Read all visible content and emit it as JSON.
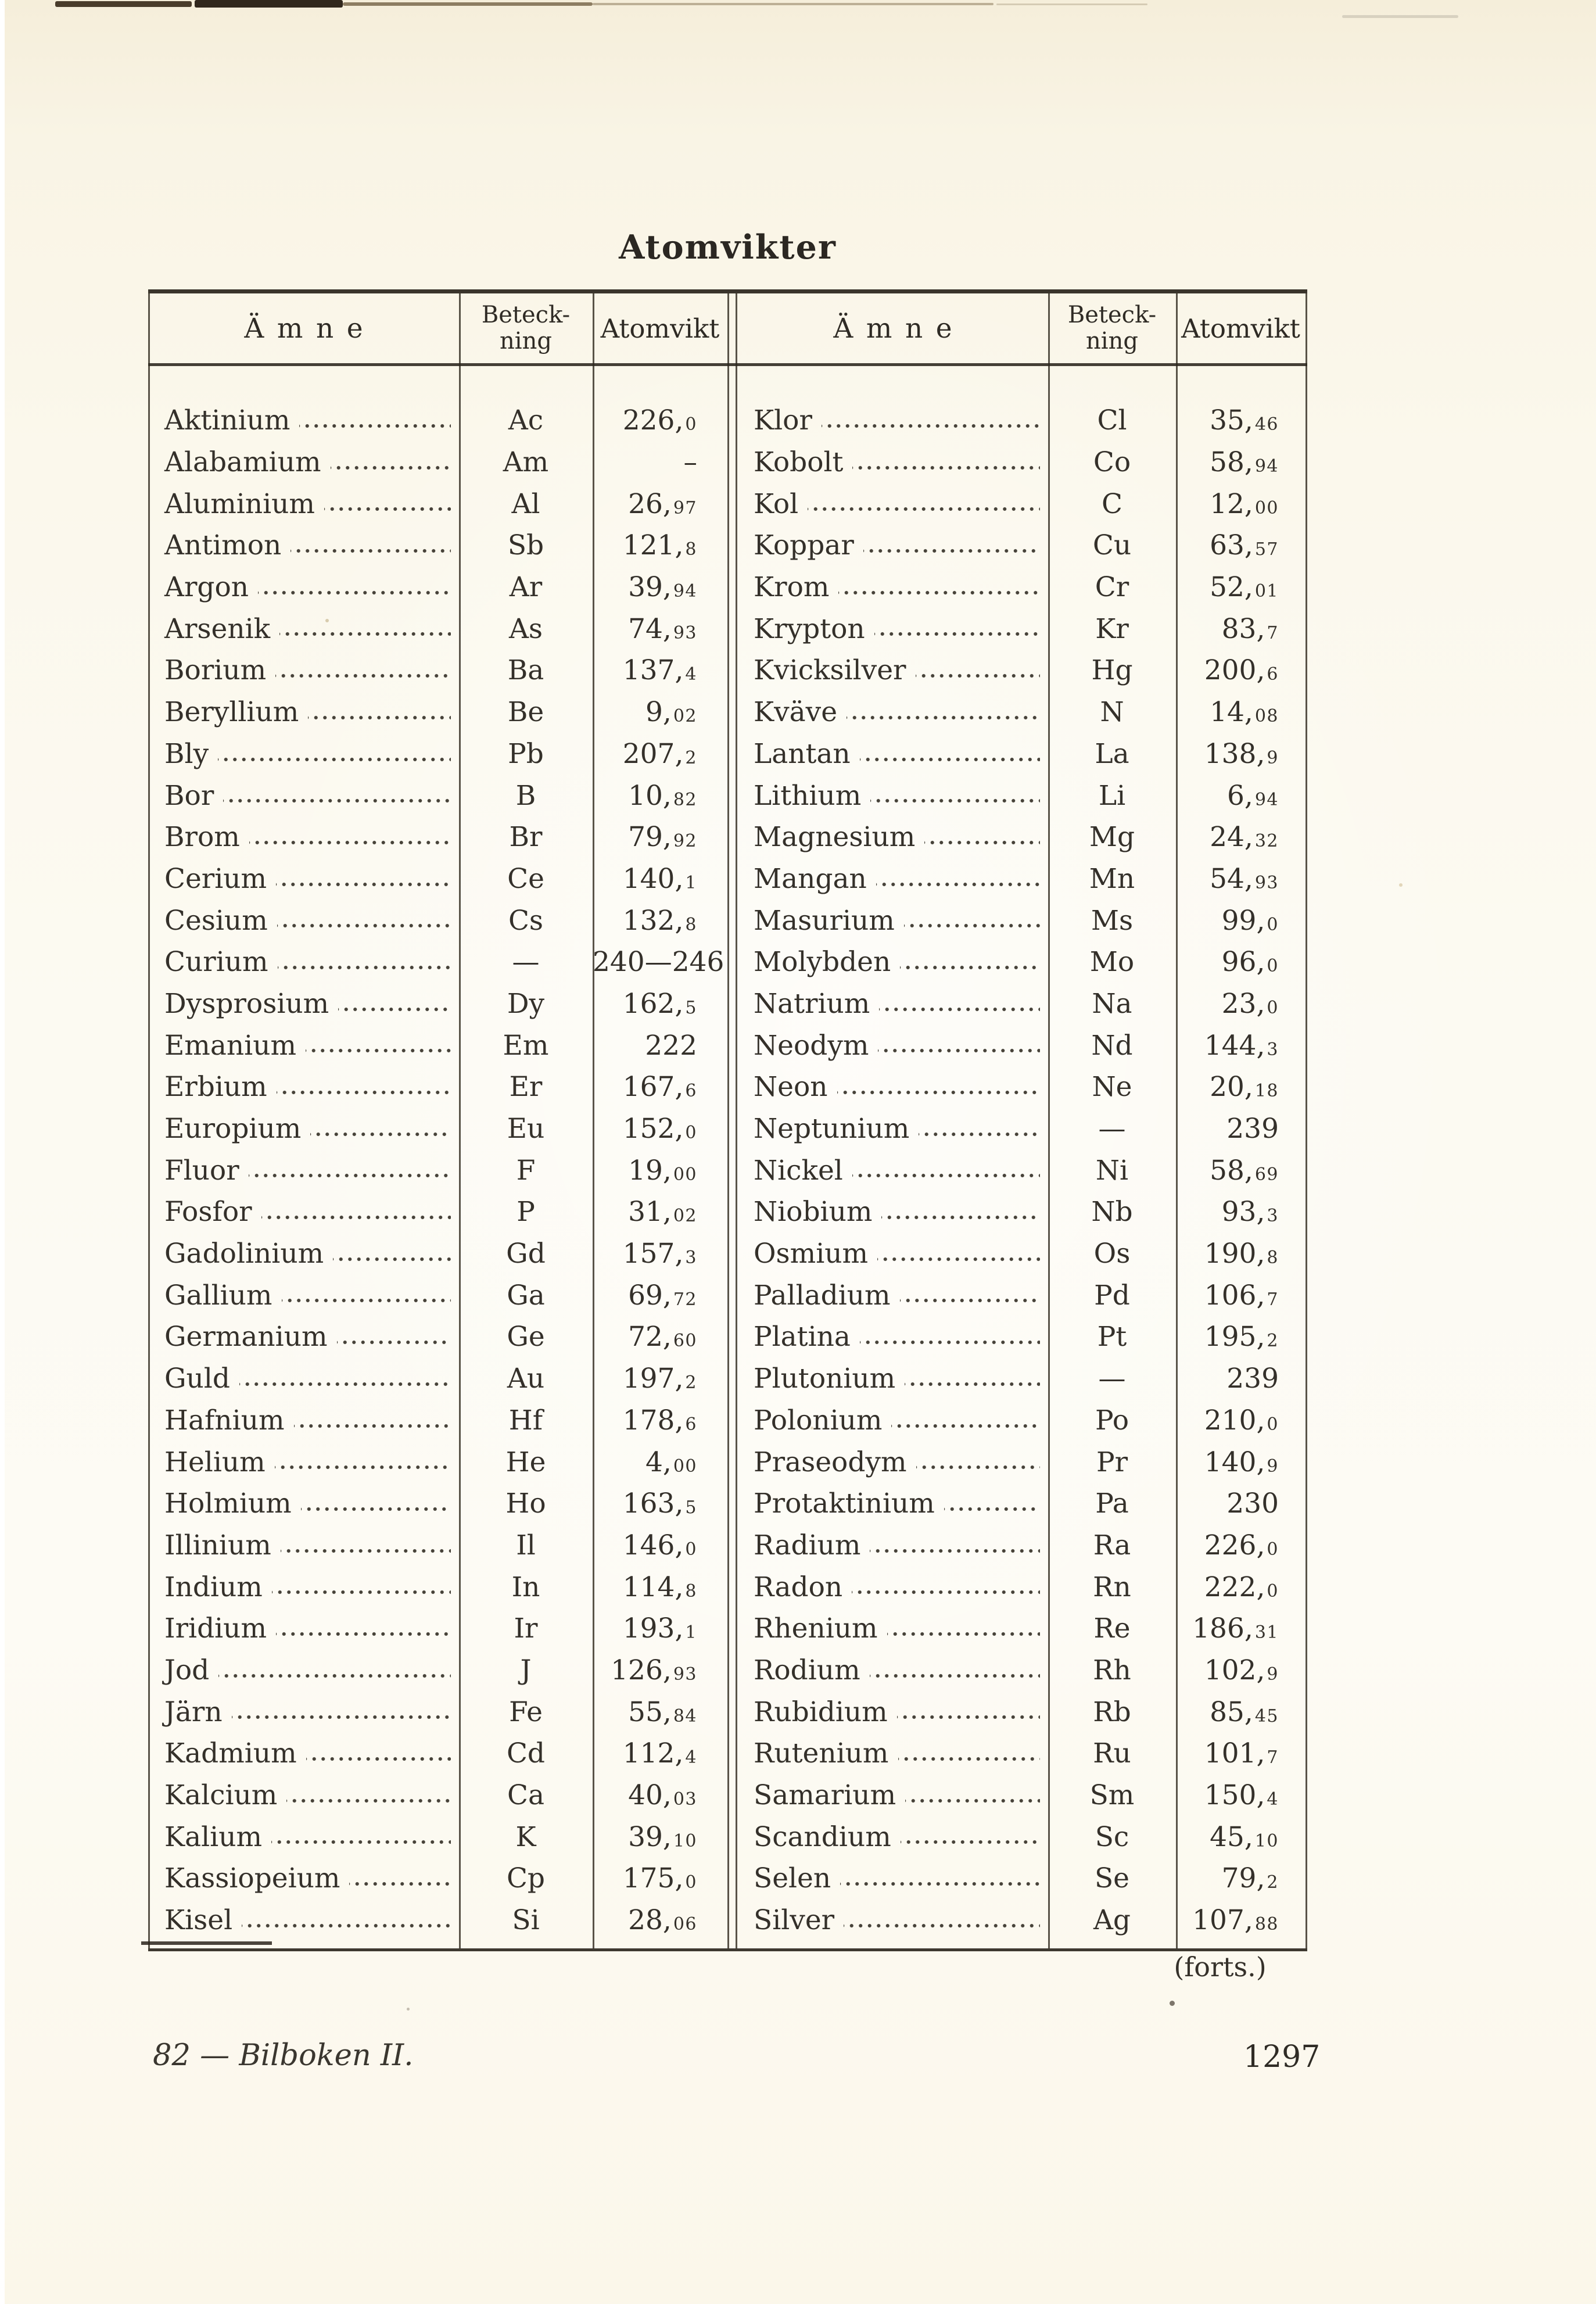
{
  "page": {
    "title": "Atomvikter",
    "continuation": "(forts.)",
    "footer_left": "82 — Bilboken II.",
    "page_number": "1297",
    "colors": {
      "paper_cream": "#f8f3e3",
      "paper_light": "#fcfaf2",
      "ink": "#33302a",
      "rule": "#3a352b"
    }
  },
  "table": {
    "headers": {
      "substance": "Ämne",
      "symbol_line1": "Beteck-",
      "symbol_line2": "ning",
      "weight": "Atomvikt"
    },
    "left_rows": [
      {
        "name": "Aktinium",
        "symbol": "Ac",
        "weight": "226,0"
      },
      {
        "name": "Alabamium",
        "symbol": "Am",
        "weight": "–"
      },
      {
        "name": "Aluminium",
        "symbol": "Al",
        "weight": "26,97"
      },
      {
        "name": "Antimon",
        "symbol": "Sb",
        "weight": "121,8"
      },
      {
        "name": "Argon",
        "symbol": "Ar",
        "weight": "39,94"
      },
      {
        "name": "Arsenik",
        "symbol": "As",
        "weight": "74,93"
      },
      {
        "name": "Borium",
        "symbol": "Ba",
        "weight": "137,4"
      },
      {
        "name": "Beryllium",
        "symbol": "Be",
        "weight": "9,02"
      },
      {
        "name": "Bly",
        "symbol": "Pb",
        "weight": "207,2"
      },
      {
        "name": "Bor",
        "symbol": "B",
        "weight": "10,82"
      },
      {
        "name": "Brom",
        "symbol": "Br",
        "weight": "79,92"
      },
      {
        "name": "Cerium",
        "symbol": "Ce",
        "weight": "140,1"
      },
      {
        "name": "Cesium",
        "symbol": "Cs",
        "weight": "132,8"
      },
      {
        "name": "Curium",
        "symbol": "—",
        "weight": "240—246"
      },
      {
        "name": "Dysprosium",
        "symbol": "Dy",
        "weight": "162,5"
      },
      {
        "name": "Emanium",
        "symbol": "Em",
        "weight": "222"
      },
      {
        "name": "Erbium",
        "symbol": "Er",
        "weight": "167,6"
      },
      {
        "name": "Europium",
        "symbol": "Eu",
        "weight": "152,0"
      },
      {
        "name": "Fluor",
        "symbol": "F",
        "weight": "19,00"
      },
      {
        "name": "Fosfor",
        "symbol": "P",
        "weight": "31,02"
      },
      {
        "name": "Gadolinium",
        "symbol": "Gd",
        "weight": "157,3"
      },
      {
        "name": "Gallium",
        "symbol": "Ga",
        "weight": "69,72"
      },
      {
        "name": "Germanium",
        "symbol": "Ge",
        "weight": "72,60"
      },
      {
        "name": "Guld",
        "symbol": "Au",
        "weight": "197,2"
      },
      {
        "name": "Hafnium",
        "symbol": "Hf",
        "weight": "178,6"
      },
      {
        "name": "Helium",
        "symbol": "He",
        "weight": "4,00"
      },
      {
        "name": "Holmium",
        "symbol": "Ho",
        "weight": "163,5"
      },
      {
        "name": "Illinium",
        "symbol": "Il",
        "weight": "146,0"
      },
      {
        "name": "Indium",
        "symbol": "In",
        "weight": "114,8"
      },
      {
        "name": "Iridium",
        "symbol": "Ir",
        "weight": "193,1"
      },
      {
        "name": "Jod",
        "symbol": "J",
        "weight": "126,93"
      },
      {
        "name": "Järn",
        "symbol": "Fe",
        "weight": "55,84"
      },
      {
        "name": "Kadmium",
        "symbol": "Cd",
        "weight": "112,4"
      },
      {
        "name": "Kalcium",
        "symbol": "Ca",
        "weight": "40,03"
      },
      {
        "name": "Kalium",
        "symbol": "K",
        "weight": "39,10"
      },
      {
        "name": "Kassiopeium",
        "symbol": "Cp",
        "weight": "175,0"
      },
      {
        "name": "Kisel",
        "symbol": "Si",
        "weight": "28,06"
      }
    ],
    "right_rows": [
      {
        "name": "Klor",
        "symbol": "Cl",
        "weight": "35,46"
      },
      {
        "name": "Kobolt",
        "symbol": "Co",
        "weight": "58,94"
      },
      {
        "name": "Kol",
        "symbol": "C",
        "weight": "12,00"
      },
      {
        "name": "Koppar",
        "symbol": "Cu",
        "weight": "63,57"
      },
      {
        "name": "Krom",
        "symbol": "Cr",
        "weight": "52,01"
      },
      {
        "name": "Krypton",
        "symbol": "Kr",
        "weight": "83,7"
      },
      {
        "name": "Kvicksilver",
        "symbol": "Hg",
        "weight": "200,6"
      },
      {
        "name": "Kväve",
        "symbol": "N",
        "weight": "14,08"
      },
      {
        "name": "Lantan",
        "symbol": "La",
        "weight": "138,9"
      },
      {
        "name": "Lithium",
        "symbol": "Li",
        "weight": "6,94"
      },
      {
        "name": "Magnesium",
        "symbol": "Mg",
        "weight": "24,32"
      },
      {
        "name": "Mangan",
        "symbol": "Mn",
        "weight": "54,93"
      },
      {
        "name": "Masurium",
        "symbol": "Ms",
        "weight": "99,0"
      },
      {
        "name": "Molybden",
        "symbol": "Mo",
        "weight": "96,0"
      },
      {
        "name": "Natrium",
        "symbol": "Na",
        "weight": "23,0"
      },
      {
        "name": "Neodym",
        "symbol": "Nd",
        "weight": "144,3"
      },
      {
        "name": "Neon",
        "symbol": "Ne",
        "weight": "20,18"
      },
      {
        "name": "Neptunium",
        "symbol": "—",
        "weight": "239"
      },
      {
        "name": "Nickel",
        "symbol": "Ni",
        "weight": "58,69"
      },
      {
        "name": "Niobium",
        "symbol": "Nb",
        "weight": "93,3"
      },
      {
        "name": "Osmium",
        "symbol": "Os",
        "weight": "190,8"
      },
      {
        "name": "Palladium",
        "symbol": "Pd",
        "weight": "106,7"
      },
      {
        "name": "Platina",
        "symbol": "Pt",
        "weight": "195,2"
      },
      {
        "name": "Plutonium",
        "symbol": "—",
        "weight": "239"
      },
      {
        "name": "Polonium",
        "symbol": "Po",
        "weight": "210,0"
      },
      {
        "name": "Praseodym",
        "symbol": "Pr",
        "weight": "140,9"
      },
      {
        "name": "Protaktinium",
        "symbol": "Pa",
        "weight": "230"
      },
      {
        "name": "Radium",
        "symbol": "Ra",
        "weight": "226,0"
      },
      {
        "name": "Radon",
        "symbol": "Rn",
        "weight": "222,0"
      },
      {
        "name": "Rhenium",
        "symbol": "Re",
        "weight": "186,31"
      },
      {
        "name": "Rodium",
        "symbol": "Rh",
        "weight": "102,9"
      },
      {
        "name": "Rubidium",
        "symbol": "Rb",
        "weight": "85,45"
      },
      {
        "name": "Rutenium",
        "symbol": "Ru",
        "weight": "101,7"
      },
      {
        "name": "Samarium",
        "symbol": "Sm",
        "weight": "150,4"
      },
      {
        "name": "Scandium",
        "symbol": "Sc",
        "weight": "45,10"
      },
      {
        "name": "Selen",
        "symbol": "Se",
        "weight": "79,2"
      },
      {
        "name": "Silver",
        "symbol": "Ag",
        "weight": "107,88"
      }
    ]
  }
}
